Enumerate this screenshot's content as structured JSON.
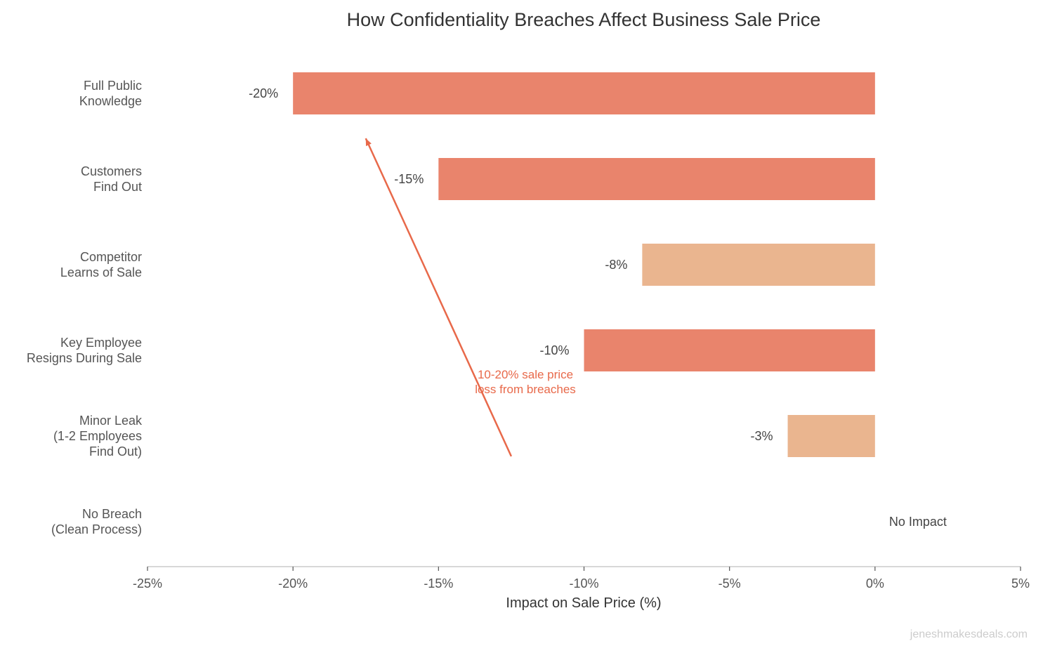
{
  "chart_data": {
    "type": "bar",
    "orientation": "horizontal",
    "title": "How Confidentiality Breaches Affect Business Sale Price",
    "xlabel": "Impact on Sale Price (%)",
    "ylabel": "",
    "xlim": [
      -25,
      5
    ],
    "xticks": [
      -25,
      -20,
      -15,
      -10,
      -5,
      0,
      5
    ],
    "xtick_labels": [
      "-25%",
      "-20%",
      "-15%",
      "-10%",
      "-5%",
      "0%",
      "5%"
    ],
    "grid": false,
    "categories": [
      [
        "Full Public",
        "Knowledge"
      ],
      [
        "Customers",
        "Find Out"
      ],
      [
        "Competitor",
        "Learns of Sale"
      ],
      [
        "Key Employee",
        "Resigns During Sale"
      ],
      [
        "Minor Leak",
        "(1-2 Employees",
        "Find Out)"
      ],
      [
        "No Breach",
        "(Clean Process)"
      ]
    ],
    "values": [
      -20,
      -15,
      -8,
      -10,
      -3,
      0
    ],
    "data_labels": [
      "-20%",
      "-15%",
      "-8%",
      "-10%",
      "-3%",
      "No Impact"
    ],
    "bar_colors": [
      "#E9846C",
      "#E9846C",
      "#EAB58F",
      "#E9846C",
      "#EAB58F",
      "#E9846C"
    ],
    "annotation": {
      "text": [
        "10-20% sale price",
        "loss from breaches"
      ],
      "color": "#E8694A",
      "arrow_from": [
        -12.5,
        4.45
      ],
      "arrow_to": [
        -17.5,
        1.55
      ]
    },
    "watermark": "jeneshmakesdeals.com"
  }
}
